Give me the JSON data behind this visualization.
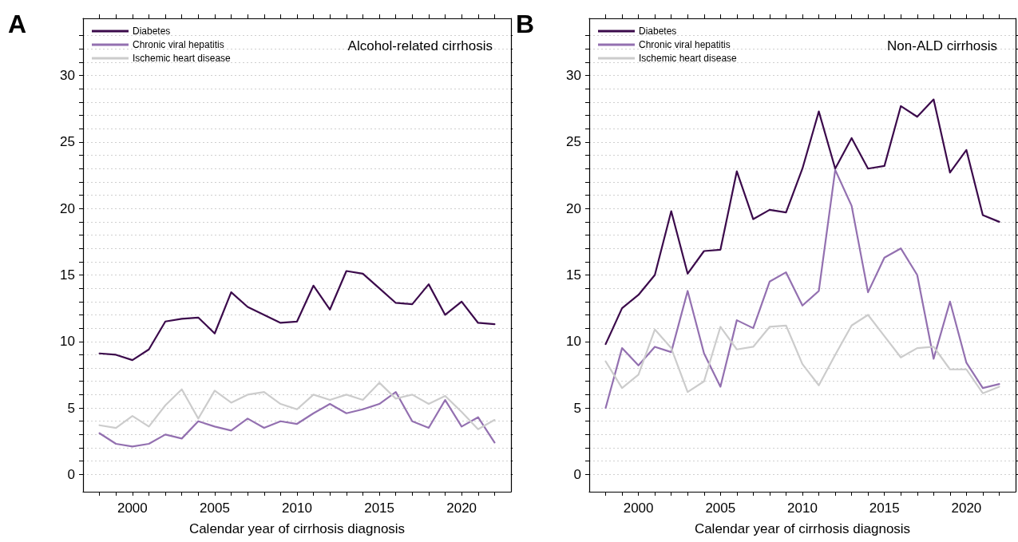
{
  "chart_data": [
    {
      "type": "line",
      "title": "Alcohol-related cirrhosis",
      "xlabel": "Calendar year of cirrhosis diagnosis",
      "annotations": [
        "A"
      ],
      "x": [
        1998,
        1999,
        2000,
        2001,
        2002,
        2003,
        2004,
        2005,
        2006,
        2007,
        2008,
        2009,
        2010,
        2011,
        2012,
        2013,
        2014,
        2015,
        2016,
        2017,
        2018,
        2019,
        2020,
        2021,
        2022
      ],
      "series": [
        {
          "name": "Diabetes",
          "color": "#3b0a4b",
          "values": [
            9.1,
            9.0,
            8.6,
            9.4,
            11.5,
            11.7,
            11.8,
            10.6,
            13.7,
            12.6,
            12.0,
            11.4,
            11.5,
            14.2,
            12.4,
            15.3,
            15.1,
            14.0,
            12.9,
            12.8,
            14.3,
            12.0,
            13.0,
            11.4,
            11.3
          ]
        },
        {
          "name": "Chronic viral hepatitis",
          "color": "#9370b0",
          "values": [
            3.1,
            2.3,
            2.1,
            2.3,
            3.0,
            2.7,
            4.0,
            3.6,
            3.3,
            4.2,
            3.5,
            4.0,
            3.8,
            4.6,
            5.3,
            4.6,
            4.9,
            5.3,
            6.2,
            4.0,
            3.5,
            5.6,
            3.6,
            4.3,
            2.4
          ]
        },
        {
          "name": "Ischemic heart disease",
          "color": "#cccccc",
          "values": [
            3.7,
            3.5,
            4.4,
            3.6,
            5.2,
            6.4,
            4.2,
            6.3,
            5.4,
            6.0,
            6.2,
            5.3,
            4.9,
            6.0,
            5.6,
            6.0,
            5.6,
            6.9,
            5.7,
            6.0,
            5.3,
            5.9,
            4.7,
            3.4,
            4.1
          ]
        }
      ],
      "xlim": [
        1997,
        2023
      ],
      "ylim": [
        -1.3,
        34.3
      ],
      "xticks": [
        {
          "value": 1998,
          "label": null
        },
        {
          "value": 1999,
          "label": null
        },
        2000,
        {
          "value": 2001,
          "label": null
        },
        {
          "value": 2002,
          "label": null
        },
        {
          "value": 2003,
          "label": null
        },
        {
          "value": 2004,
          "label": null
        },
        2005,
        {
          "value": 2006,
          "label": null
        },
        {
          "value": 2007,
          "label": null
        },
        {
          "value": 2008,
          "label": null
        },
        {
          "value": 2009,
          "label": null
        },
        2010,
        {
          "value": 2011,
          "label": null
        },
        {
          "value": 2012,
          "label": null
        },
        {
          "value": 2013,
          "label": null
        },
        {
          "value": 2014,
          "label": null
        },
        2015,
        {
          "value": 2016,
          "label": null
        },
        {
          "value": 2017,
          "label": null
        },
        {
          "value": 2018,
          "label": null
        },
        {
          "value": 2019,
          "label": null
        },
        2020,
        {
          "value": 2021,
          "label": null
        },
        {
          "value": 2022,
          "label": null
        }
      ],
      "yticks": [
        0,
        {
          "value": 1,
          "label": null
        },
        {
          "value": 2,
          "label": null
        },
        {
          "value": 3,
          "label": null
        },
        {
          "value": 4,
          "label": null
        },
        5,
        {
          "value": 6,
          "label": null
        },
        {
          "value": 7,
          "label": null
        },
        {
          "value": 8,
          "label": null
        },
        {
          "value": 9,
          "label": null
        },
        10,
        {
          "value": 11,
          "label": null
        },
        {
          "value": 12,
          "label": null
        },
        {
          "value": 13,
          "label": null
        },
        {
          "value": 14,
          "label": null
        },
        15,
        {
          "value": 16,
          "label": null
        },
        {
          "value": 17,
          "label": null
        },
        {
          "value": 18,
          "label": null
        },
        {
          "value": 19,
          "label": null
        },
        20,
        {
          "value": 21,
          "label": null
        },
        {
          "value": 22,
          "label": null
        },
        {
          "value": 23,
          "label": null
        },
        {
          "value": 24,
          "label": null
        },
        25,
        {
          "value": 26,
          "label": null
        },
        {
          "value": 27,
          "label": null
        },
        {
          "value": 28,
          "label": null
        },
        {
          "value": 29,
          "label": null
        },
        30,
        {
          "value": 31,
          "label": null
        },
        {
          "value": 32,
          "label": null
        },
        {
          "value": 33,
          "label": null
        }
      ],
      "grid": "y",
      "legend": "top left",
      "marker": "none",
      "line_style": "solid"
    },
    {
      "type": "line",
      "title": "Non-ALD cirrhosis",
      "xlabel": "Calendar year of cirrhosis diagnosis",
      "annotations": [
        "B"
      ],
      "x": [
        1998,
        1999,
        2000,
        2001,
        2002,
        2003,
        2004,
        2005,
        2006,
        2007,
        2008,
        2009,
        2010,
        2011,
        2012,
        2013,
        2014,
        2015,
        2016,
        2017,
        2018,
        2019,
        2020,
        2021,
        2022
      ],
      "series": [
        {
          "name": "Diabetes",
          "color": "#3b0a4b",
          "values": [
            9.8,
            12.5,
            13.5,
            15.0,
            19.8,
            15.1,
            16.8,
            16.9,
            22.8,
            19.2,
            19.9,
            19.7,
            23.0,
            27.3,
            23.0,
            25.3,
            23.0,
            23.2,
            27.7,
            26.9,
            28.2,
            22.7,
            24.4,
            19.5,
            19.0
          ]
        },
        {
          "name": "Chronic viral hepatitis",
          "color": "#9370b0",
          "values": [
            5.0,
            9.5,
            8.2,
            9.6,
            9.2,
            13.8,
            9.1,
            6.6,
            11.6,
            11.0,
            14.5,
            15.2,
            12.7,
            13.8,
            22.9,
            20.2,
            13.7,
            16.3,
            17.0,
            15.0,
            8.7,
            13.0,
            8.4,
            6.5,
            6.8
          ]
        },
        {
          "name": "Ischemic heart disease",
          "color": "#cccccc",
          "values": [
            8.5,
            6.5,
            7.5,
            10.9,
            9.5,
            6.2,
            7.0,
            11.1,
            9.4,
            9.6,
            11.1,
            11.2,
            8.3,
            6.7,
            9.0,
            11.2,
            12.0,
            10.4,
            8.8,
            9.5,
            9.6,
            7.9,
            7.9,
            6.1,
            6.6
          ]
        }
      ],
      "xlim": [
        1997,
        2023
      ],
      "ylim": [
        -1.3,
        34.3
      ],
      "xticks": [
        {
          "value": 1998,
          "label": null
        },
        {
          "value": 1999,
          "label": null
        },
        2000,
        {
          "value": 2001,
          "label": null
        },
        {
          "value": 2002,
          "label": null
        },
        {
          "value": 2003,
          "label": null
        },
        {
          "value": 2004,
          "label": null
        },
        2005,
        {
          "value": 2006,
          "label": null
        },
        {
          "value": 2007,
          "label": null
        },
        {
          "value": 2008,
          "label": null
        },
        {
          "value": 2009,
          "label": null
        },
        2010,
        {
          "value": 2011,
          "label": null
        },
        {
          "value": 2012,
          "label": null
        },
        {
          "value": 2013,
          "label": null
        },
        {
          "value": 2014,
          "label": null
        },
        2015,
        {
          "value": 2016,
          "label": null
        },
        {
          "value": 2017,
          "label": null
        },
        {
          "value": 2018,
          "label": null
        },
        {
          "value": 2019,
          "label": null
        },
        2020,
        {
          "value": 2021,
          "label": null
        },
        {
          "value": 2022,
          "label": null
        }
      ],
      "yticks": [
        0,
        {
          "value": 1,
          "label": null
        },
        {
          "value": 2,
          "label": null
        },
        {
          "value": 3,
          "label": null
        },
        {
          "value": 4,
          "label": null
        },
        5,
        {
          "value": 6,
          "label": null
        },
        {
          "value": 7,
          "label": null
        },
        {
          "value": 8,
          "label": null
        },
        {
          "value": 9,
          "label": null
        },
        10,
        {
          "value": 11,
          "label": null
        },
        {
          "value": 12,
          "label": null
        },
        {
          "value": 13,
          "label": null
        },
        {
          "value": 14,
          "label": null
        },
        15,
        {
          "value": 16,
          "label": null
        },
        {
          "value": 17,
          "label": null
        },
        {
          "value": 18,
          "label": null
        },
        {
          "value": 19,
          "label": null
        },
        20,
        {
          "value": 21,
          "label": null
        },
        {
          "value": 22,
          "label": null
        },
        {
          "value": 23,
          "label": null
        },
        {
          "value": 24,
          "label": null
        },
        25,
        {
          "value": 26,
          "label": null
        },
        {
          "value": 27,
          "label": null
        },
        {
          "value": 28,
          "label": null
        },
        {
          "value": 29,
          "label": null
        },
        30,
        {
          "value": 31,
          "label": null
        },
        {
          "value": 32,
          "label": null
        },
        {
          "value": 33,
          "label": null
        }
      ],
      "grid": "y",
      "legend": "top left",
      "marker": "none",
      "line_style": "solid"
    }
  ]
}
